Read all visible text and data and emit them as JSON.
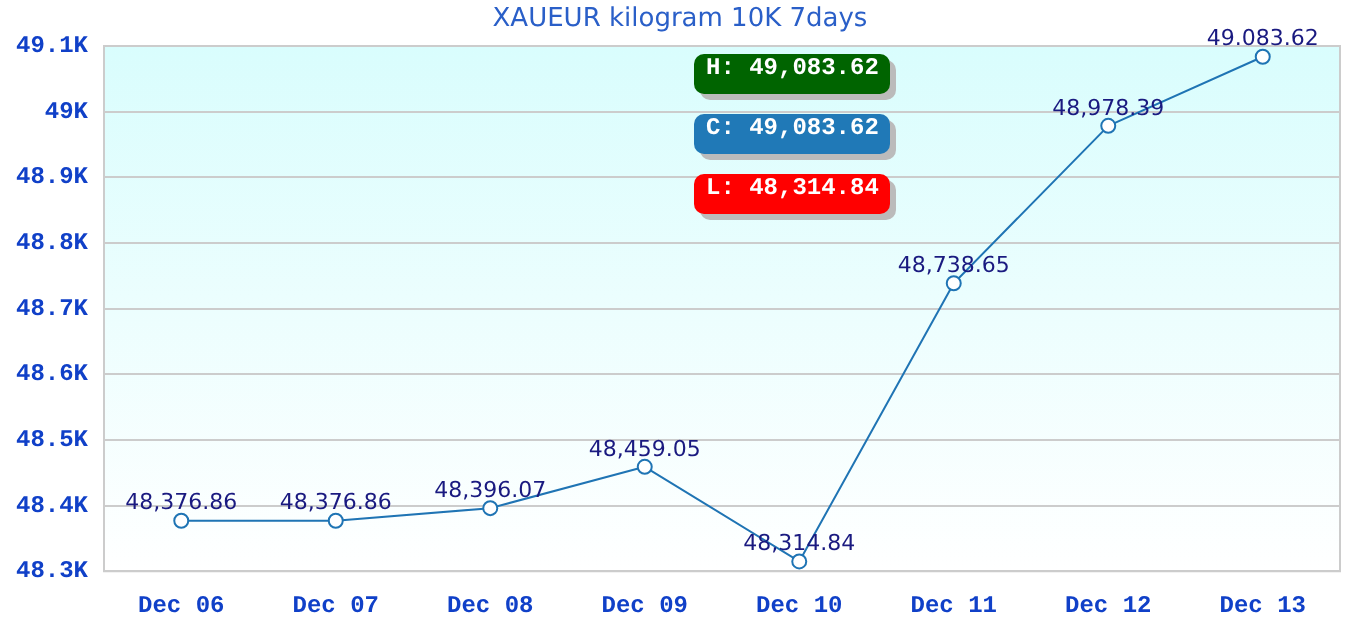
{
  "chart_data": {
    "type": "line",
    "title": "XAUEUR kilogram 10K 7days",
    "categories": [
      "Dec 06",
      "Dec 07",
      "Dec 08",
      "Dec 09",
      "Dec 10",
      "Dec 11",
      "Dec 12",
      "Dec 13"
    ],
    "values": [
      48376.86,
      48376.86,
      48396.07,
      48459.05,
      48314.84,
      48738.65,
      48978.39,
      49083.62
    ],
    "value_labels": [
      "48,376.86",
      "48,376.86",
      "48,396.07",
      "48,459.05",
      "48,314.84",
      "48,738.65",
      "48,978.39",
      "49.083.62"
    ],
    "color": "#1f74b4",
    "ylim": [
      48300,
      49100
    ],
    "yticks": [
      {
        "value": 48300,
        "label": "48.3K"
      },
      {
        "value": 48400,
        "label": "48.4K"
      },
      {
        "value": 48500,
        "label": "48.5K"
      },
      {
        "value": 48600,
        "label": "48.6K"
      },
      {
        "value": 48700,
        "label": "48.7K"
      },
      {
        "value": 48800,
        "label": "48.8K"
      },
      {
        "value": 48900,
        "label": "48.9K"
      },
      {
        "value": 49000,
        "label": "49K"
      },
      {
        "value": 49100,
        "label": "49.1K"
      }
    ],
    "grid": "y",
    "legend": false,
    "marker": "circle",
    "line_style": "solid",
    "annotations": [
      "H: 49,083.62",
      "C: 49,083.62",
      "L: 48,314.84"
    ]
  }
}
